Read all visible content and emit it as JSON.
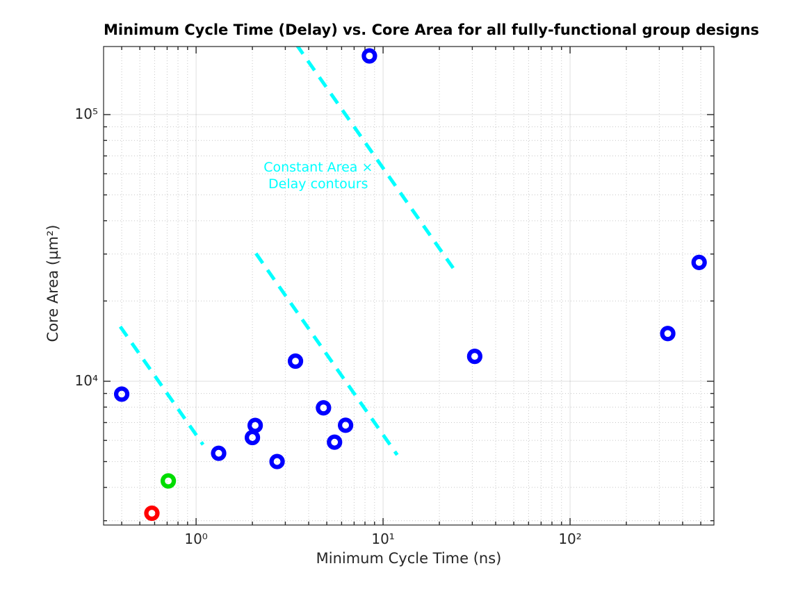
{
  "chart_data": {
    "type": "scatter",
    "title": "Minimum Cycle Time (Delay) vs. Core Area for all fully-functional group designs",
    "xlabel": "Minimum Cycle Time (ns)",
    "ylabel": "Core Area (µm²)",
    "x_scale": "log",
    "y_scale": "log",
    "xlim": [
      0.32,
      588
    ],
    "ylim": [
      2890,
      180000
    ],
    "grid": {
      "major": true,
      "minor_dotted": true,
      "box": true,
      "tick_dir": "in"
    },
    "x_major_ticks": [
      {
        "value": 1,
        "label": "10⁰"
      },
      {
        "value": 10,
        "label": "10¹"
      },
      {
        "value": 100,
        "label": "10²"
      }
    ],
    "y_major_ticks": [
      {
        "value": 10000,
        "label": "10⁴"
      },
      {
        "value": 100000,
        "label": "10⁵"
      }
    ],
    "x_minor_ticks": [
      0.4,
      0.5,
      0.6,
      0.7,
      0.8,
      0.9,
      2,
      3,
      4,
      5,
      6,
      7,
      8,
      9,
      20,
      30,
      40,
      50,
      60,
      70,
      80,
      90,
      200,
      300,
      400,
      500
    ],
    "y_minor_ticks": [
      3000,
      4000,
      5000,
      6000,
      7000,
      8000,
      9000,
      20000,
      30000,
      40000,
      50000,
      60000,
      70000,
      80000,
      90000
    ],
    "series": [
      {
        "name": "blue-circle-designs",
        "marker": "open-circle",
        "color": "#0000ff",
        "points": [
          {
            "x": 0.4,
            "y": 8950
          },
          {
            "x": 1.32,
            "y": 5370
          },
          {
            "x": 2.0,
            "y": 6150
          },
          {
            "x": 2.07,
            "y": 6830
          },
          {
            "x": 2.71,
            "y": 5000
          },
          {
            "x": 3.4,
            "y": 11900
          },
          {
            "x": 4.8,
            "y": 7950
          },
          {
            "x": 5.5,
            "y": 5910
          },
          {
            "x": 6.3,
            "y": 6840
          },
          {
            "x": 8.45,
            "y": 166000
          },
          {
            "x": 30.9,
            "y": 12400
          },
          {
            "x": 333,
            "y": 15100
          },
          {
            "x": 490,
            "y": 27900
          }
        ]
      },
      {
        "name": "green-circle-design",
        "marker": "open-circle",
        "color": "#00dd00",
        "points": [
          {
            "x": 0.71,
            "y": 4230
          }
        ]
      },
      {
        "name": "red-circle-design",
        "marker": "open-circle",
        "color": "#ff0000",
        "points": [
          {
            "x": 0.58,
            "y": 3200
          }
        ]
      }
    ],
    "contours": {
      "label_lines": [
        "Constant Area ×",
        "Delay contours"
      ],
      "label_pos": {
        "x": 4.5,
        "y": 59000
      },
      "color": "#00ffff",
      "style": "dashed",
      "lines": [
        {
          "area_delay_product": 630000,
          "x_start": 3.43,
          "x_end": 23.7
        },
        {
          "area_delay_product": 63000,
          "x_start": 2.09,
          "x_end": 11.9
        },
        {
          "area_delay_product": 6300,
          "x_start": 0.393,
          "x_end": 1.089
        }
      ]
    },
    "colors": {
      "axis": "#262626",
      "major_grid": "rgba(38,38,38,0.15)",
      "minor_grid": "rgba(26,26,26,0.25)",
      "background": "#ffffff"
    }
  }
}
